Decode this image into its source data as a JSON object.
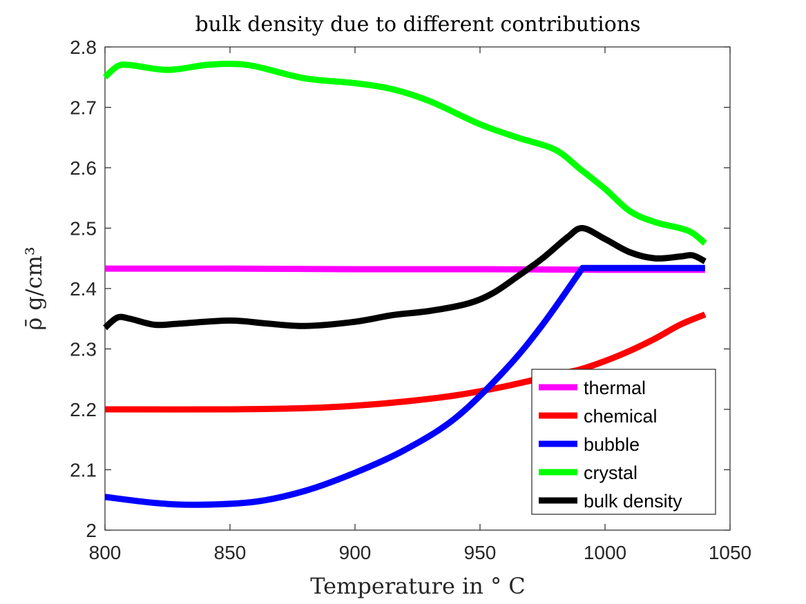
{
  "chart_data": {
    "type": "line",
    "title": "bulk density due to different contributions",
    "xlabel": "Temperature in ° C",
    "ylabel": "ρ̄ g/cm³",
    "xlim": [
      800,
      1050
    ],
    "ylim": [
      2.0,
      2.8
    ],
    "xticks": [
      "800",
      "850",
      "900",
      "950",
      "1000",
      "1050"
    ],
    "yticks": [
      "2",
      "2.1",
      "2.2",
      "2.3",
      "2.4",
      "2.5",
      "2.6",
      "2.7",
      "2.8"
    ],
    "grid": false,
    "legend_position": "bottom-right",
    "series": [
      {
        "name": "thermal",
        "color": "#ff00ff",
        "points": [
          [
            800,
            2.433
          ],
          [
            850,
            2.433
          ],
          [
            900,
            2.432
          ],
          [
            950,
            2.432
          ],
          [
            1000,
            2.431
          ],
          [
            1040,
            2.431
          ]
        ]
      },
      {
        "name": "chemical",
        "color": "#ff0000",
        "points": [
          [
            800,
            2.2
          ],
          [
            850,
            2.2
          ],
          [
            880,
            2.202
          ],
          [
            900,
            2.206
          ],
          [
            920,
            2.213
          ],
          [
            940,
            2.223
          ],
          [
            960,
            2.238
          ],
          [
            980,
            2.257
          ],
          [
            990,
            2.266
          ],
          [
            1000,
            2.28
          ],
          [
            1010,
            2.297
          ],
          [
            1020,
            2.317
          ],
          [
            1030,
            2.34
          ],
          [
            1040,
            2.357
          ]
        ]
      },
      {
        "name": "bubble",
        "color": "#0000ff",
        "points": [
          [
            800,
            2.055
          ],
          [
            820,
            2.045
          ],
          [
            837,
            2.042
          ],
          [
            860,
            2.047
          ],
          [
            880,
            2.065
          ],
          [
            900,
            2.095
          ],
          [
            920,
            2.133
          ],
          [
            940,
            2.185
          ],
          [
            960,
            2.265
          ],
          [
            975,
            2.34
          ],
          [
            991,
            2.434
          ],
          [
            1000,
            2.434
          ],
          [
            1020,
            2.434
          ],
          [
            1040,
            2.434
          ]
        ]
      },
      {
        "name": "crystal",
        "color": "#00ff00",
        "points": [
          [
            800,
            2.75
          ],
          [
            805,
            2.768
          ],
          [
            810,
            2.77
          ],
          [
            825,
            2.762
          ],
          [
            840,
            2.77
          ],
          [
            850,
            2.772
          ],
          [
            860,
            2.768
          ],
          [
            880,
            2.748
          ],
          [
            900,
            2.74
          ],
          [
            915,
            2.73
          ],
          [
            930,
            2.71
          ],
          [
            950,
            2.672
          ],
          [
            965,
            2.65
          ],
          [
            980,
            2.63
          ],
          [
            990,
            2.598
          ],
          [
            1000,
            2.565
          ],
          [
            1010,
            2.528
          ],
          [
            1020,
            2.51
          ],
          [
            1030,
            2.5
          ],
          [
            1035,
            2.492
          ],
          [
            1040,
            2.475
          ]
        ]
      },
      {
        "name": "bulk density",
        "color": "#000000",
        "points": [
          [
            800,
            2.335
          ],
          [
            805,
            2.352
          ],
          [
            810,
            2.35
          ],
          [
            820,
            2.34
          ],
          [
            830,
            2.342
          ],
          [
            850,
            2.347
          ],
          [
            865,
            2.342
          ],
          [
            880,
            2.338
          ],
          [
            900,
            2.345
          ],
          [
            915,
            2.356
          ],
          [
            930,
            2.363
          ],
          [
            945,
            2.375
          ],
          [
            955,
            2.392
          ],
          [
            965,
            2.42
          ],
          [
            975,
            2.45
          ],
          [
            985,
            2.485
          ],
          [
            991,
            2.5
          ],
          [
            1000,
            2.482
          ],
          [
            1010,
            2.46
          ],
          [
            1020,
            2.45
          ],
          [
            1030,
            2.453
          ],
          [
            1035,
            2.455
          ],
          [
            1040,
            2.445
          ]
        ]
      }
    ]
  }
}
